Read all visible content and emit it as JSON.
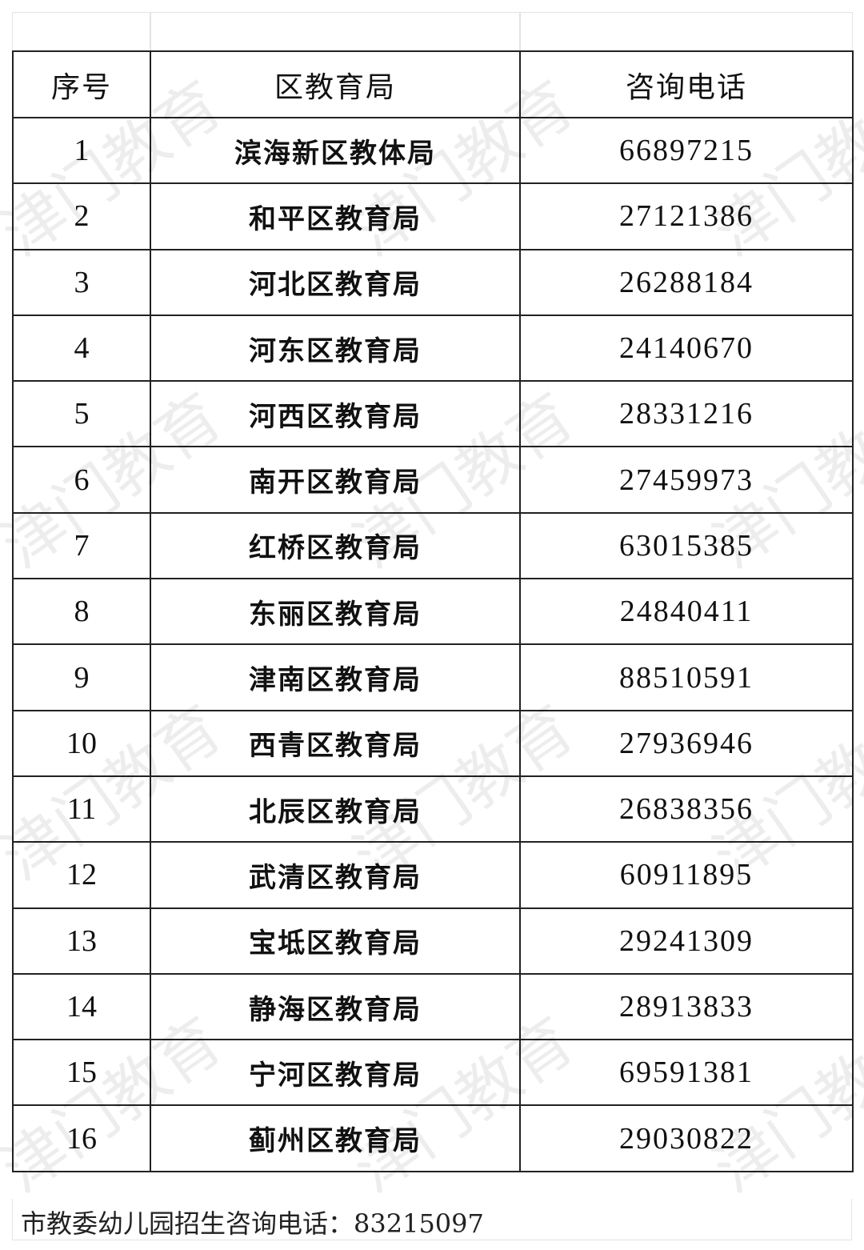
{
  "watermark": "津门教育",
  "table": {
    "headers": [
      "序号",
      "区教育局",
      "咨询电话"
    ],
    "rows": [
      {
        "no": "1",
        "bureau": "滨海新区教体局",
        "phone": "66897215"
      },
      {
        "no": "2",
        "bureau": "和平区教育局",
        "phone": "27121386"
      },
      {
        "no": "3",
        "bureau": "河北区教育局",
        "phone": "26288184"
      },
      {
        "no": "4",
        "bureau": "河东区教育局",
        "phone": "24140670"
      },
      {
        "no": "5",
        "bureau": "河西区教育局",
        "phone": "28331216"
      },
      {
        "no": "6",
        "bureau": "南开区教育局",
        "phone": "27459973"
      },
      {
        "no": "7",
        "bureau": "红桥区教育局",
        "phone": "63015385"
      },
      {
        "no": "8",
        "bureau": "东丽区教育局",
        "phone": "24840411"
      },
      {
        "no": "9",
        "bureau": "津南区教育局",
        "phone": "88510591"
      },
      {
        "no": "10",
        "bureau": "西青区教育局",
        "phone": "27936946"
      },
      {
        "no": "11",
        "bureau": "北辰区教育局",
        "phone": "26838356"
      },
      {
        "no": "12",
        "bureau": "武清区教育局",
        "phone": "60911895"
      },
      {
        "no": "13",
        "bureau": "宝坻区教育局",
        "phone": "29241309"
      },
      {
        "no": "14",
        "bureau": "静海区教育局",
        "phone": "28913833"
      },
      {
        "no": "15",
        "bureau": "宁河区教育局",
        "phone": "69591381"
      },
      {
        "no": "16",
        "bureau": "蓟州区教育局",
        "phone": "29030822"
      }
    ]
  },
  "footer": "市教委幼儿园招生咨询电话：83215097"
}
